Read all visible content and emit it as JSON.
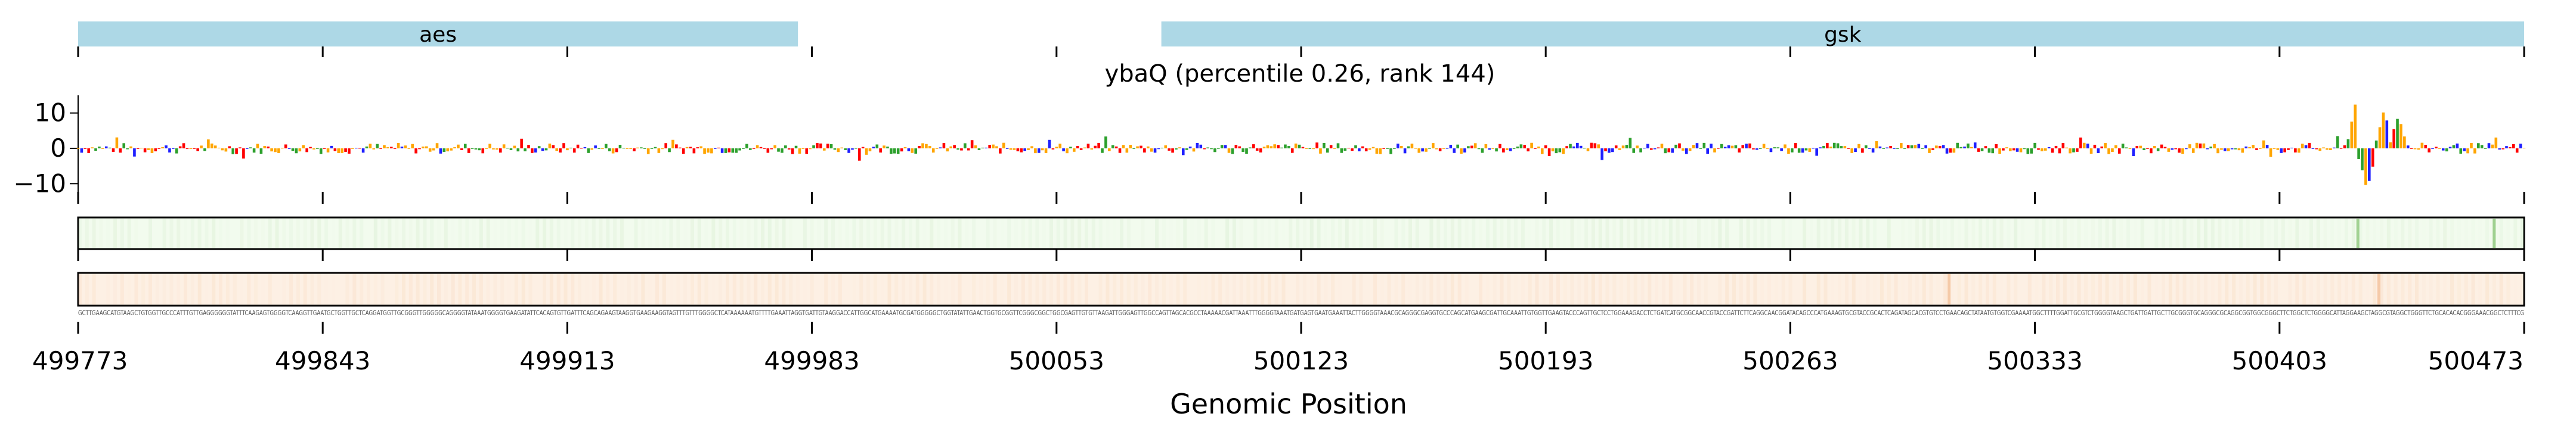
{
  "chart_data": [
    {
      "type": "gene-annotation-track",
      "genes": [
        {
          "name": "aes",
          "start": 499773,
          "end": 499979
        },
        {
          "name": "gsk",
          "start": 500083,
          "end": 500473
        }
      ],
      "color": "#add8e6",
      "xlim": [
        499773,
        500473
      ]
    },
    {
      "type": "sequence-logo",
      "title": "ybaQ (percentile 0.26, rank 144)",
      "ylim": [
        -14,
        15
      ],
      "yticks": [
        10,
        0,
        -10
      ],
      "ytick_labels": [
        "10",
        "0",
        "−10"
      ],
      "xlim": [
        499773,
        500473
      ],
      "base_colors": {
        "A": "#2ca02c",
        "C": "#1f1fff",
        "G": "#ffa500",
        "T": "#ff0000"
      },
      "peaks": [
        {
          "position": 500425,
          "value": 14
        },
        {
          "position": 500428,
          "value": -12
        },
        {
          "position": 500433,
          "value": 11
        },
        {
          "position": 500437,
          "value": 9
        }
      ]
    },
    {
      "type": "heatmap",
      "colormap": "greens",
      "xlim": [
        499773,
        500473
      ]
    },
    {
      "type": "heatmap",
      "colormap": "oranges",
      "xlim": [
        499773,
        500473
      ]
    },
    {
      "type": "line",
      "xlabel": "Genomic Position",
      "xticks": [
        499773,
        499843,
        499913,
        499983,
        500053,
        500123,
        500193,
        500263,
        500333,
        500403,
        500473
      ],
      "xtick_labels": [
        "499773",
        "499843",
        "499913",
        "499983",
        "500053",
        "500123",
        "500193",
        "500263",
        "500333",
        "500403",
        "500473"
      ],
      "sequence": "GCTTGAAGCATGTAAGCTGTGGTTGCCCATTTGTTGAGGGGGGTATTTCAAGAGTGGGGTCAAGGTTGAATGCTGGTTGCTCAGGATGGTTGCGGGTTGGGGGCAGGGGTATAAATGGGGTGAAGATATTCACAGTGTTGATTTCAGCAGAAGTAAGGTGAAGAAGGTAGTTTGTTTGGGGCTCATAAAAAATGTTTTGAAATTAGGTGATTGTAAGGACCATTGGCATGAAAATGCGATGGGGGCTGGTATATTGAACTGGTGCGGTTCGGGCGGCTGGCGAGTTGTGTTAAGATTGGGAGTTGGCCAGTTAGCACGCCTAAAAACGATTAAATTTGGGGTAAATGATGAGTGAATGAAATTACTTGGGGTAAACGCAGGGCGAGGTGCCCAGCATGAAGCGATTGCAAATTGTGGTTGAAGTACCCAGTTGCTCCTGGAAAGACCTCTGATCATGCGGCAACCGTACCGATTCTTCAGGCAACGGATACAGCCCATGAAAGTGCGTACCGCACTCAGATAGCACGTGTCCTGAACAGCTATAATGTGGTCGAAAATGGCTTTTGGATTGCGTCTGGGGTAAGCTGATTGATTGCTTGCGGGTGCAGGGCGCAGGCGGTGGCGGGCTTCTGGCTCTGGGGCATTAGGAAGCTAGGCGTAGGCTGGGTTCTGCACACACGGGAAACGGCTCTTTCG"
    }
  ]
}
